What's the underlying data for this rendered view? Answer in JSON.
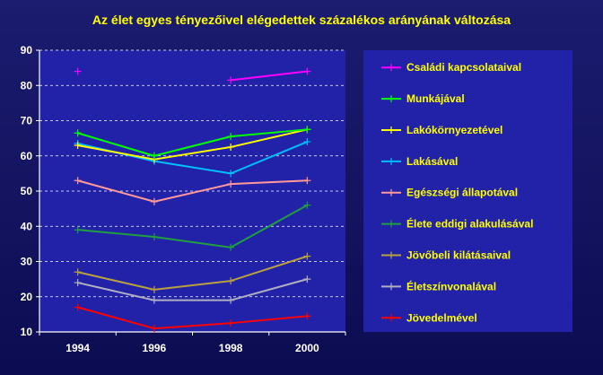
{
  "chart_data": {
    "type": "line",
    "title": "Az élet egyes tényezőivel elégedettek százalékos arányának változása",
    "xlabel": "",
    "ylabel": "",
    "categories": [
      "1994",
      "1996",
      "1998",
      "2000"
    ],
    "ylim": [
      10,
      90
    ],
    "yticks": [
      10,
      20,
      30,
      40,
      50,
      60,
      70,
      80,
      90
    ],
    "grid": true,
    "legend_position": "right",
    "series": [
      {
        "name": "Családi kapcsolataival",
        "color": "#ff00ff",
        "values": [
          84,
          null,
          81.5,
          84
        ]
      },
      {
        "name": "Munkájával",
        "color": "#00ff00",
        "values": [
          66.5,
          60,
          65.5,
          67.5
        ]
      },
      {
        "name": "Lakókörnyezetével",
        "color": "#ffff00",
        "values": [
          63,
          59,
          62.5,
          67.5
        ]
      },
      {
        "name": "Lakásával",
        "color": "#00bfff",
        "values": [
          63.5,
          58.5,
          55,
          64
        ]
      },
      {
        "name": "Egészségi állapotával",
        "color": "#ff9999",
        "values": [
          53,
          47,
          52,
          53
        ]
      },
      {
        "name": "Élete eddigi alakulásával",
        "color": "#1f9f3f",
        "values": [
          39,
          37,
          34,
          46
        ]
      },
      {
        "name": "Jövőbeli kilátásaival",
        "color": "#b8a040",
        "values": [
          27,
          22,
          24.5,
          31.5
        ]
      },
      {
        "name": "Életszínvonalával",
        "color": "#b0b0c0",
        "values": [
          24,
          19,
          19,
          25
        ]
      },
      {
        "name": "Jövedelmével",
        "color": "#ff0000",
        "values": [
          17,
          11,
          12.5,
          14.5
        ]
      }
    ]
  }
}
